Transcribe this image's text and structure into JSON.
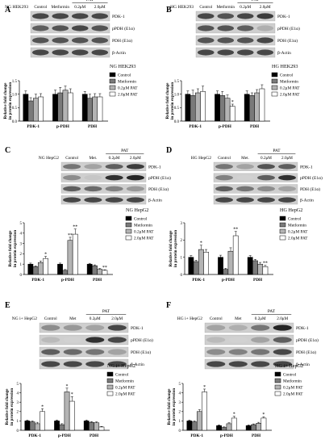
{
  "legend": [
    "Control",
    "Metformin",
    "0.2μM PAT",
    "2.0μM PAT"
  ],
  "colors": {
    "control": "#000000",
    "metformin": "#7a7a7a",
    "pat02": "#b4b4b4",
    "pat20": "#ffffff"
  },
  "panels": [
    {
      "letter": "A",
      "blot": {
        "cell_label": "NG HEK293",
        "lanes": [
          "Control",
          "Metformin",
          "0.2μM",
          "2.0μM"
        ],
        "group": "PAT",
        "proteins": [
          "PDK-1",
          "pPDH (E1α)",
          "PDH (E1α)",
          "β-Actin"
        ]
      }
    },
    {
      "letter": "B",
      "blot": {
        "cell_label": "HG HEK293",
        "lanes": [
          "Control",
          "Metformin",
          "0.2μM",
          "2.0μM"
        ],
        "group": "PAT",
        "proteins": [
          "PDK-1",
          "pPDH (E1α)",
          "PDH (E1α)",
          "β-Actin"
        ]
      }
    },
    {
      "letter": "C",
      "blot": {
        "cell_label": "NG HepG2",
        "lanes": [
          "Control",
          "Met.",
          "0.2μM",
          "2.0μM"
        ],
        "group": "PAT",
        "proteins": [
          "PDK-1",
          "pPDH (E1α)",
          "PDH (E1α)",
          "β-Actin"
        ]
      }
    },
    {
      "letter": "D",
      "blot": {
        "cell_label": "HG HepG2",
        "lanes": [
          "Control",
          "Met.",
          "0.2μM",
          "2.0μM"
        ],
        "group": "PAT",
        "proteins": [
          "PDK-1",
          "pPDH (E1α)",
          "PDH (E1α)",
          "β-Actin"
        ]
      }
    },
    {
      "letter": "E",
      "blot": {
        "cell_label": "NG i+ HepG2",
        "lanes": [
          "Control",
          "Met",
          "0.2μM",
          "2.0μM"
        ],
        "group": "PAT",
        "proteins": [
          "PDK-1",
          "pPDH (E1α)",
          "PDH (E1α)",
          "β-Actin"
        ]
      }
    },
    {
      "letter": "F",
      "blot": {
        "cell_label": "HG i+ HepG2",
        "lanes": [
          "Control",
          "Met",
          "0.2μM",
          "2.0μM"
        ],
        "group": "PAT",
        "proteins": [
          "PDK-1",
          "pPDH (E1α)",
          "PDH (E1α)",
          "β-Actin"
        ]
      }
    }
  ],
  "chart_data": [
    {
      "type": "bar",
      "title": "NG HEK293",
      "categories": [
        "PDK-1",
        "p-PDH",
        "PDH"
      ],
      "ylabel": "Relative fold change in protein expression",
      "ylim": [
        0,
        1.5
      ],
      "yticks": [
        0.0,
        0.5,
        1.0,
        1.5
      ],
      "series": [
        {
          "name": "Control",
          "values": [
            1.0,
            1.0,
            1.0
          ],
          "errors": [
            0.12,
            0.15,
            0.1
          ]
        },
        {
          "name": "Metformin",
          "values": [
            0.75,
            1.05,
            0.85
          ],
          "errors": [
            0.12,
            0.2,
            0.15
          ]
        },
        {
          "name": "0.2μM PAT",
          "values": [
            0.85,
            1.15,
            0.9
          ],
          "errors": [
            0.15,
            0.15,
            0.12
          ]
        },
        {
          "name": "2.0μM PAT",
          "values": [
            0.9,
            1.05,
            0.9
          ],
          "errors": [
            0.12,
            0.15,
            0.12
          ]
        }
      ],
      "sig": []
    },
    {
      "type": "bar",
      "title": "HG HEK293",
      "categories": [
        "PDK-1",
        "p-PDH",
        "PDH"
      ],
      "ylabel": "Relative fold change in protein expression",
      "ylim": [
        0,
        1.5
      ],
      "yticks": [
        0.0,
        0.5,
        1.0,
        1.5
      ],
      "series": [
        {
          "name": "Control",
          "values": [
            1.0,
            1.0,
            1.0
          ],
          "errors": [
            0.12,
            0.12,
            0.12
          ]
        },
        {
          "name": "Metformin",
          "values": [
            0.95,
            0.95,
            0.95
          ],
          "errors": [
            0.2,
            0.15,
            0.1
          ]
        },
        {
          "name": "0.2μM PAT",
          "values": [
            1.05,
            0.85,
            1.05
          ],
          "errors": [
            0.15,
            0.12,
            0.12
          ]
        },
        {
          "name": "2.0μM PAT",
          "values": [
            1.1,
            0.55,
            1.2
          ],
          "errors": [
            0.2,
            0.08,
            0.15
          ]
        }
      ],
      "sig": [
        {
          "cat": 1,
          "ser": 3,
          "label": "*"
        }
      ]
    },
    {
      "type": "bar",
      "title": "NG HepG2",
      "categories": [
        "PDK-1",
        "p-PDH",
        "PDH"
      ],
      "ylabel": "Relative fold change in protein expression",
      "ylim": [
        0,
        5
      ],
      "yticks": [
        0,
        1,
        2,
        3,
        4,
        5
      ],
      "series": [
        {
          "name": "Control",
          "values": [
            1.0,
            1.0,
            1.0
          ],
          "errors": [
            0.1,
            0.1,
            0.08
          ]
        },
        {
          "name": "Metformin",
          "values": [
            0.75,
            0.4,
            0.85
          ],
          "errors": [
            0.08,
            0.08,
            0.08
          ]
        },
        {
          "name": "0.2μM PAT",
          "values": [
            1.15,
            3.3,
            0.5
          ],
          "errors": [
            0.15,
            0.3,
            0.08
          ]
        },
        {
          "name": "2.0μM PAT",
          "values": [
            1.55,
            3.9,
            0.4
          ],
          "errors": [
            0.2,
            0.5,
            0.06
          ]
        }
      ],
      "sig": [
        {
          "cat": 0,
          "ser": 3,
          "label": "*"
        },
        {
          "cat": 1,
          "ser": 2,
          "label": "**"
        },
        {
          "cat": 1,
          "ser": 3,
          "label": "**"
        },
        {
          "cat": 2,
          "ser": 3,
          "label": "**"
        }
      ]
    },
    {
      "type": "bar",
      "title": "HG HepG2",
      "categories": [
        "PDK-1",
        "p-PDH",
        "PDH"
      ],
      "ylabel": "Relative fold change in protein expression",
      "ylim": [
        0,
        3
      ],
      "yticks": [
        0,
        1,
        2,
        3
      ],
      "series": [
        {
          "name": "Control",
          "values": [
            1.0,
            1.0,
            1.0
          ],
          "errors": [
            0.1,
            0.12,
            0.1
          ]
        },
        {
          "name": "Metformin",
          "values": [
            0.75,
            0.3,
            0.8
          ],
          "errors": [
            0.08,
            0.06,
            0.08
          ]
        },
        {
          "name": "0.2μM PAT",
          "values": [
            1.45,
            1.35,
            0.6
          ],
          "errors": [
            0.25,
            0.2,
            0.1
          ]
        },
        {
          "name": "2.0μM PAT",
          "values": [
            1.3,
            2.25,
            0.45
          ],
          "errors": [
            0.15,
            0.25,
            0.08
          ]
        }
      ],
      "sig": [
        {
          "cat": 0,
          "ser": 2,
          "label": "*"
        },
        {
          "cat": 1,
          "ser": 3,
          "label": "**"
        },
        {
          "cat": 2,
          "ser": 3,
          "label": "**"
        }
      ]
    },
    {
      "type": "bar",
      "title": "NG i+ HepG2",
      "categories": [
        "PDK-1",
        "p-PDH",
        "PDH"
      ],
      "ylabel": "Relative fold change in protein expression",
      "ylim": [
        0,
        5
      ],
      "yticks": [
        0,
        1,
        2,
        3,
        4,
        5
      ],
      "series": [
        {
          "name": "Control",
          "values": [
            1.0,
            1.0,
            1.0
          ],
          "errors": [
            0.1,
            0.1,
            0.1
          ]
        },
        {
          "name": "Metformin",
          "values": [
            0.9,
            0.6,
            0.85
          ],
          "errors": [
            0.1,
            0.1,
            0.08
          ]
        },
        {
          "name": "0.2μM PAT",
          "values": [
            0.7,
            4.1,
            0.8
          ],
          "errors": [
            0.15,
            0.4,
            0.1
          ]
        },
        {
          "name": "2.0μM PAT",
          "values": [
            2.0,
            3.1,
            0.35
          ],
          "errors": [
            0.3,
            0.5,
            0.06
          ]
        }
      ],
      "sig": [
        {
          "cat": 0,
          "ser": 3,
          "label": "*"
        },
        {
          "cat": 1,
          "ser": 2,
          "label": "*"
        },
        {
          "cat": 1,
          "ser": 3,
          "label": "*"
        }
      ]
    },
    {
      "type": "bar",
      "title": "HG i+ HepG2",
      "categories": [
        "PDK-1",
        "p-PDH",
        "PDH"
      ],
      "ylabel": "Relative fold change in protein expression",
      "ylim": [
        0,
        5
      ],
      "yticks": [
        0,
        1,
        2,
        3,
        4,
        5
      ],
      "series": [
        {
          "name": "Control",
          "values": [
            1.0,
            0.5,
            0.5
          ],
          "errors": [
            0.1,
            0.08,
            0.08
          ]
        },
        {
          "name": "Metformin",
          "values": [
            0.9,
            0.3,
            0.6
          ],
          "errors": [
            0.1,
            0.06,
            0.08
          ]
        },
        {
          "name": "0.2μM PAT",
          "values": [
            2.0,
            0.7,
            0.75
          ],
          "errors": [
            0.2,
            0.1,
            0.1
          ]
        },
        {
          "name": "2.0μM PAT",
          "values": [
            4.1,
            1.3,
            1.3
          ],
          "errors": [
            0.3,
            0.2,
            0.15
          ]
        }
      ],
      "sig": [
        {
          "cat": 0,
          "ser": 3,
          "label": "*"
        },
        {
          "cat": 1,
          "ser": 3,
          "label": "*"
        },
        {
          "cat": 2,
          "ser": 3,
          "label": "*"
        }
      ]
    }
  ]
}
